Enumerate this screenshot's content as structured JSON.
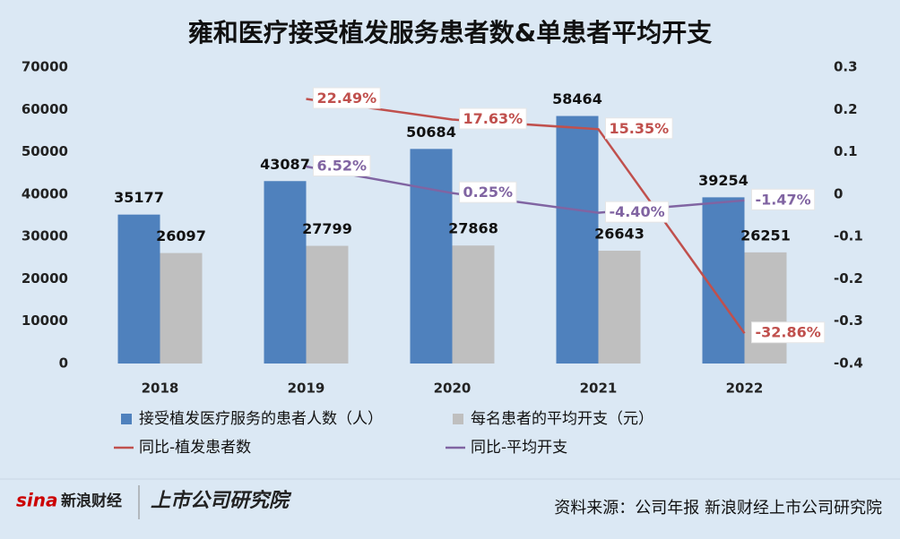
{
  "chart_data": {
    "type": "bar",
    "title": "雍和医疗接受植发服务患者数&单患者平均开支",
    "categories": [
      "2018",
      "2019",
      "2020",
      "2021",
      "2022"
    ],
    "series": [
      {
        "name": "接受植发医疗服务的患者人数（人）",
        "type": "bar",
        "color": "#4f81bd",
        "values": [
          35177,
          43087,
          50684,
          58464,
          39254
        ]
      },
      {
        "name": "每名患者的平均开支（元）",
        "type": "bar",
        "color": "#bfbfbf",
        "values": [
          26097,
          27799,
          27868,
          26643,
          26251
        ]
      },
      {
        "name": "同比-植发患者数",
        "type": "line",
        "axis": "y2",
        "color": "#c0504d",
        "values": [
          null,
          0.2249,
          0.1763,
          0.1535,
          -0.3286
        ],
        "value_labels": [
          null,
          "22.49%",
          "17.63%",
          "15.35%",
          "-32.86%"
        ]
      },
      {
        "name": "同比-平均开支",
        "type": "line",
        "axis": "y2",
        "color": "#8064a2",
        "values": [
          null,
          0.0652,
          0.0025,
          -0.044,
          -0.0147
        ],
        "value_labels": [
          null,
          "6.52%",
          "0.25%",
          "-4.40%",
          "-1.47%"
        ]
      }
    ],
    "ylim": [
      0,
      70000
    ],
    "yticks": [
      0,
      10000,
      20000,
      30000,
      40000,
      50000,
      60000,
      70000
    ],
    "y2lim": [
      -0.4,
      0.3
    ],
    "y2ticks": [
      -0.4,
      -0.3,
      -0.2,
      -0.1,
      0,
      0.1,
      0.2,
      0.3
    ],
    "grid": false,
    "legend": "bottom"
  },
  "footer": {
    "logos": [
      "新浪财经",
      "上市公司研究院"
    ],
    "source": "资料来源：公司年报 新浪财经上市公司研究院"
  }
}
